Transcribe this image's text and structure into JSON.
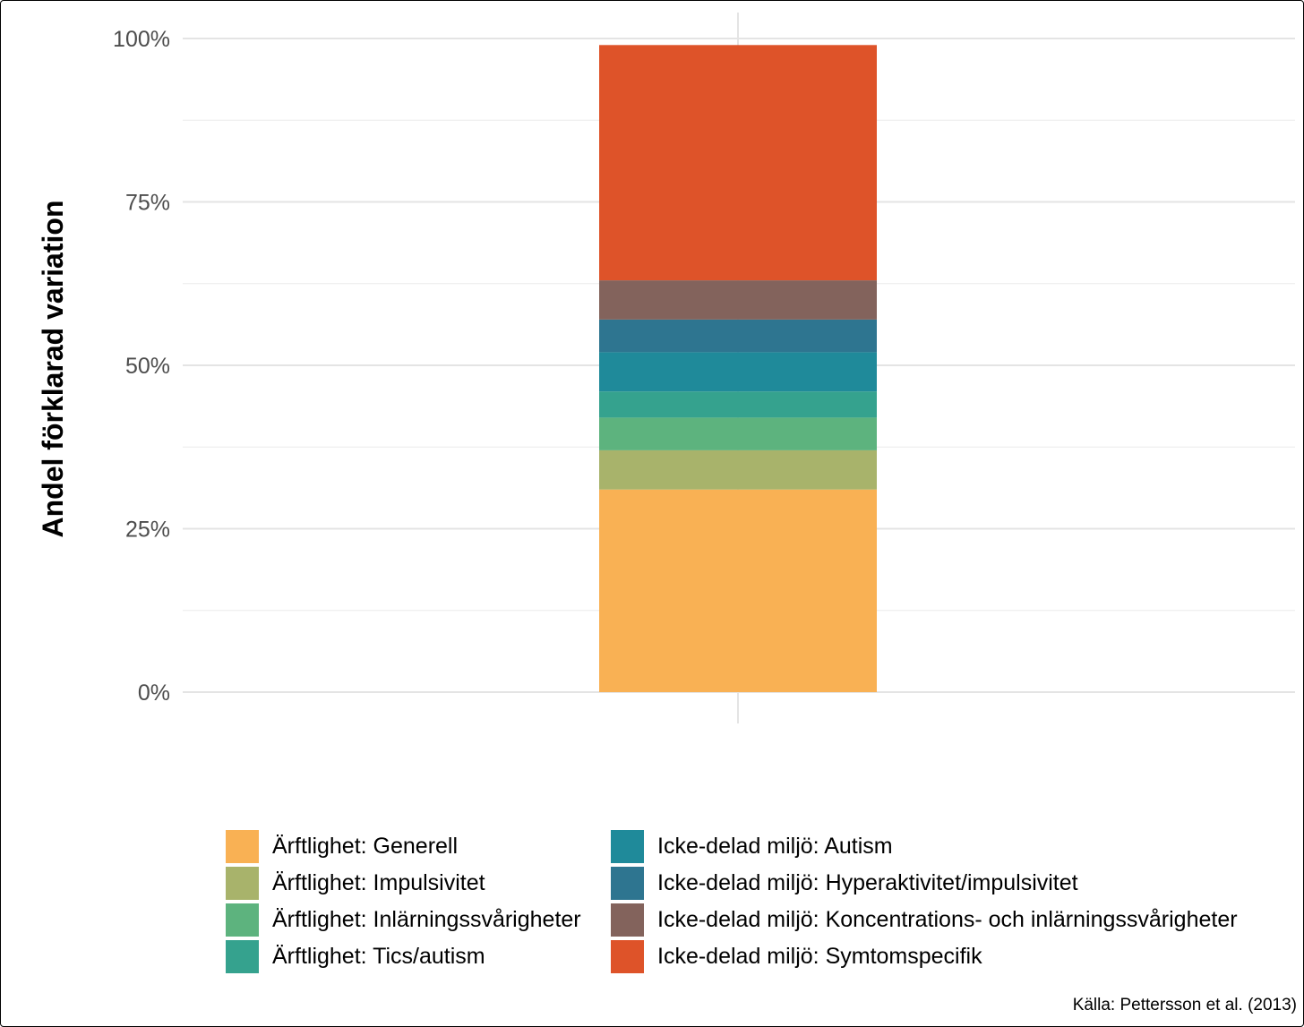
{
  "chart_data": {
    "type": "bar",
    "stacked": true,
    "categories": [
      ""
    ],
    "ylabel": "Andel förklarad variation",
    "xlabel": "",
    "ylim": [
      0,
      1
    ],
    "yticks": [
      0,
      0.25,
      0.5,
      0.75,
      1.0
    ],
    "ytick_labels": [
      "0%",
      "25%",
      "50%",
      "75%",
      "100%"
    ],
    "grid": true,
    "legend_position": "bottom",
    "series": [
      {
        "name": "Ärftlighet: Generell",
        "values": [
          0.31
        ],
        "color": "#F9B154"
      },
      {
        "name": "Ärftlighet: Impulsivitet",
        "values": [
          0.06
        ],
        "color": "#A8B36B"
      },
      {
        "name": "Ärftlighet: Inlärningssvårigheter",
        "values": [
          0.05
        ],
        "color": "#5DB37E"
      },
      {
        "name": "Ärftlighet: Tics/autism",
        "values": [
          0.04
        ],
        "color": "#35A28E"
      },
      {
        "name": "Icke-delad miljö: Autism",
        "values": [
          0.06
        ],
        "color": "#1F8A9A"
      },
      {
        "name": "Icke-delad miljö: Hyperaktivitet/impulsivitet",
        "values": [
          0.05
        ],
        "color": "#2E7590"
      },
      {
        "name": "Icke-delad miljö: Koncentrations- och inlärningssvårigheter",
        "values": [
          0.06
        ],
        "color": "#83635C"
      },
      {
        "name": "Icke-delad miljö: Symtomspecifik",
        "values": [
          0.36
        ],
        "color": "#DE5329"
      }
    ],
    "caption": "Källa: Pettersson et al. (2013)"
  }
}
